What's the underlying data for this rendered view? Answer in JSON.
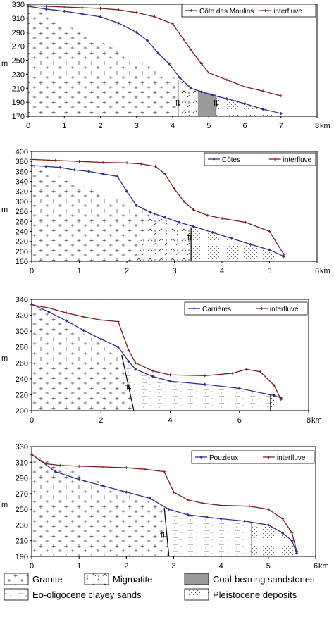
{
  "units": {
    "y": "m",
    "x": "km"
  },
  "colors": {
    "valley": "#2f2f8f",
    "interfluve": "#7a1f1f",
    "coal": "#9a9a9a"
  },
  "legend": [
    {
      "key": "granite",
      "label": "Granite"
    },
    {
      "key": "migmatite",
      "label": "Migmatite"
    },
    {
      "key": "coal",
      "label": "Coal-bearing sandstones"
    },
    {
      "key": "clay",
      "label": "Eo-oligocene clayey sands"
    },
    {
      "key": "pleist",
      "label": "Pleistocene deposits"
    }
  ],
  "chart_data": [
    {
      "type": "line",
      "xlim": [
        0,
        8
      ],
      "ylim": [
        170,
        330
      ],
      "xticks": [
        0,
        1,
        2,
        3,
        4,
        5,
        6,
        7,
        8
      ],
      "yticks": [
        170,
        190,
        210,
        230,
        250,
        270,
        290,
        310,
        330
      ],
      "series": [
        {
          "name": "Côte des Moulins",
          "x": [
            0,
            0.5,
            1,
            1.5,
            2,
            2.5,
            3,
            3.3,
            3.6,
            3.9,
            4.2,
            4.5,
            4.8,
            5.1,
            5.5,
            6,
            6.5,
            7
          ],
          "y": [
            327,
            323,
            320,
            316,
            312,
            303,
            290,
            278,
            260,
            245,
            225,
            210,
            205,
            200,
            195,
            188,
            180,
            174
          ]
        },
        {
          "name": "interfluve",
          "x": [
            0,
            0.5,
            1,
            1.5,
            2,
            2.5,
            3,
            3.5,
            4,
            4.3,
            4.5,
            4.8,
            5,
            5.5,
            6,
            6.5,
            7
          ],
          "y": [
            328,
            327,
            326,
            325,
            324,
            322,
            318,
            312,
            302,
            280,
            265,
            245,
            232,
            222,
            212,
            206,
            199
          ]
        }
      ]
    },
    {
      "type": "line",
      "xlim": [
        0,
        6
      ],
      "ylim": [
        180,
        400
      ],
      "xticks": [
        0,
        1,
        2,
        3,
        4,
        5,
        6
      ],
      "yticks": [
        180,
        200,
        220,
        240,
        260,
        280,
        300,
        320,
        340,
        360,
        380,
        400
      ],
      "series": [
        {
          "name": "Côtes",
          "x": [
            0,
            0.3,
            0.6,
            0.9,
            1.2,
            1.5,
            1.8,
            2,
            2.2,
            2.5,
            2.8,
            3.1,
            3.4,
            3.8,
            4.2,
            4.6,
            5,
            5.3
          ],
          "y": [
            372,
            370,
            368,
            363,
            360,
            355,
            350,
            320,
            292,
            278,
            268,
            258,
            250,
            238,
            226,
            214,
            203,
            190
          ]
        },
        {
          "name": "interfluve",
          "x": [
            0,
            0.5,
            1,
            1.5,
            2,
            2.3,
            2.6,
            2.8,
            3,
            3.2,
            3.4,
            3.7,
            4,
            4.5,
            5,
            5.3
          ],
          "y": [
            384,
            382,
            380,
            378,
            377,
            375,
            370,
            355,
            325,
            300,
            283,
            272,
            266,
            258,
            240,
            194
          ]
        }
      ]
    },
    {
      "type": "line",
      "xlim": [
        0,
        8
      ],
      "ylim": [
        200,
        340
      ],
      "xticks": [
        0,
        2,
        4,
        6,
        8
      ],
      "yticks": [
        200,
        220,
        240,
        260,
        280,
        300,
        320,
        340
      ],
      "series": [
        {
          "name": "Carrières",
          "x": [
            0,
            0.5,
            1,
            1.5,
            2,
            2.5,
            2.8,
            3,
            3.5,
            4,
            5,
            6,
            7,
            7.2
          ],
          "y": [
            334,
            324,
            313,
            301,
            290,
            280,
            262,
            252,
            243,
            237,
            233,
            228,
            219,
            216
          ]
        },
        {
          "name": "interfluve",
          "x": [
            0,
            0.5,
            1,
            1.5,
            2,
            2.5,
            2.8,
            3,
            3.5,
            4,
            5,
            5.8,
            6.2,
            6.6,
            7,
            7.2
          ],
          "y": [
            333,
            329,
            323,
            318,
            314,
            312,
            276,
            260,
            250,
            245,
            244,
            247,
            252,
            249,
            232,
            214
          ]
        }
      ]
    },
    {
      "type": "line",
      "xlim": [
        0,
        6
      ],
      "ylim": [
        190,
        330
      ],
      "xticks": [
        0,
        1,
        2,
        3,
        4,
        5,
        6
      ],
      "yticks": [
        190,
        210,
        230,
        250,
        270,
        290,
        310,
        330
      ],
      "series": [
        {
          "name": "Pouzieux",
          "x": [
            0,
            0.5,
            1,
            1.5,
            2,
            2.5,
            2.9,
            3.3,
            3.7,
            4,
            4.5,
            5,
            5.3,
            5.5,
            5.6
          ],
          "y": [
            320,
            298,
            288,
            280,
            272,
            264,
            250,
            243,
            240,
            238,
            235,
            230,
            220,
            210,
            194
          ]
        },
        {
          "name": "interfluve",
          "x": [
            0,
            0.3,
            0.6,
            1,
            1.5,
            2,
            2.4,
            2.8,
            3,
            3.3,
            3.6,
            4,
            4.6,
            5,
            5.3,
            5.5,
            5.6
          ],
          "y": [
            320,
            308,
            306,
            305,
            304,
            303,
            301,
            298,
            272,
            262,
            258,
            255,
            254,
            250,
            238,
            220,
            196
          ]
        }
      ]
    }
  ]
}
